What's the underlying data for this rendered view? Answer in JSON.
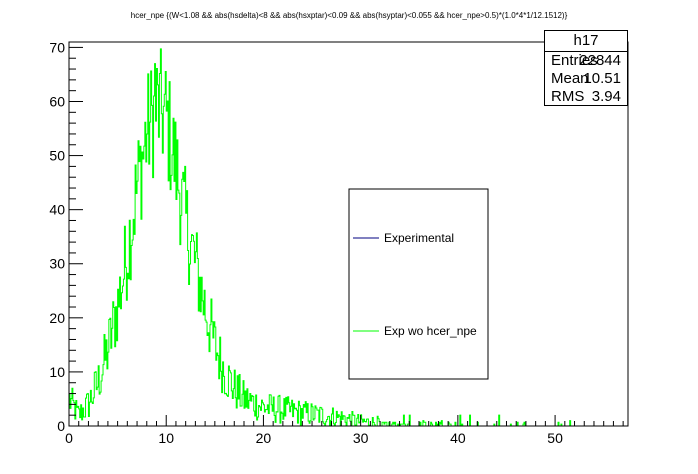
{
  "chart_data": {
    "type": "histogram",
    "title": "hcer_npe {(W<1.08 && abs(hsdelta)<8 && abs(hsxptar)<0.09 && abs(hsyptar)<0.055 && hcer_npe>0.5)*(1.0*4*1/12.1512)}",
    "xlabel": "",
    "ylabel": "",
    "xlim": [
      0,
      57.5
    ],
    "ylim": [
      0,
      71
    ],
    "x_ticks": [
      0,
      10,
      20,
      30,
      40,
      50
    ],
    "y_ticks": [
      0,
      10,
      20,
      30,
      40,
      50,
      60,
      70
    ],
    "grid": false,
    "legend": {
      "placement": "center-right",
      "entries": [
        {
          "label": "Experimental",
          "color": "#000080"
        },
        {
          "label": "Exp wo hcer_npe",
          "color": "#00ff00"
        }
      ]
    },
    "series": [
      {
        "name": "Exp wo hcer_npe",
        "color": "#00ff00",
        "bin_width": 0.1,
        "profile": [
          [
            0,
            5
          ],
          [
            1,
            2
          ],
          [
            2,
            4
          ],
          [
            3,
            8
          ],
          [
            4,
            14
          ],
          [
            5,
            22
          ],
          [
            6,
            32
          ],
          [
            7,
            44
          ],
          [
            8,
            54
          ],
          [
            9,
            59
          ],
          [
            10,
            57
          ],
          [
            11,
            48
          ],
          [
            12,
            38
          ],
          [
            13,
            30
          ],
          [
            14,
            22
          ],
          [
            15,
            15
          ],
          [
            16,
            10
          ],
          [
            17,
            7
          ],
          [
            18,
            5
          ],
          [
            20,
            3.5
          ],
          [
            22,
            3
          ],
          [
            25,
            2.2
          ],
          [
            28,
            1.5
          ],
          [
            30,
            0.8
          ],
          [
            33,
            0.5
          ],
          [
            36,
            0.3
          ],
          [
            40,
            0.15
          ],
          [
            45,
            0.08
          ],
          [
            50,
            0.03
          ],
          [
            57.5,
            0
          ]
        ],
        "peak": {
          "x": 8.8,
          "y": 67
        }
      },
      {
        "name": "Experimental",
        "color": "#000080",
        "bin_width": 0.1,
        "profile": []
      }
    ]
  },
  "stats_box": {
    "title": "h17",
    "rows": [
      {
        "key": "Entries",
        "value": "22844"
      },
      {
        "key": "Mean",
        "value": "10.51"
      },
      {
        "key": "RMS",
        "value": "3.94"
      }
    ]
  }
}
